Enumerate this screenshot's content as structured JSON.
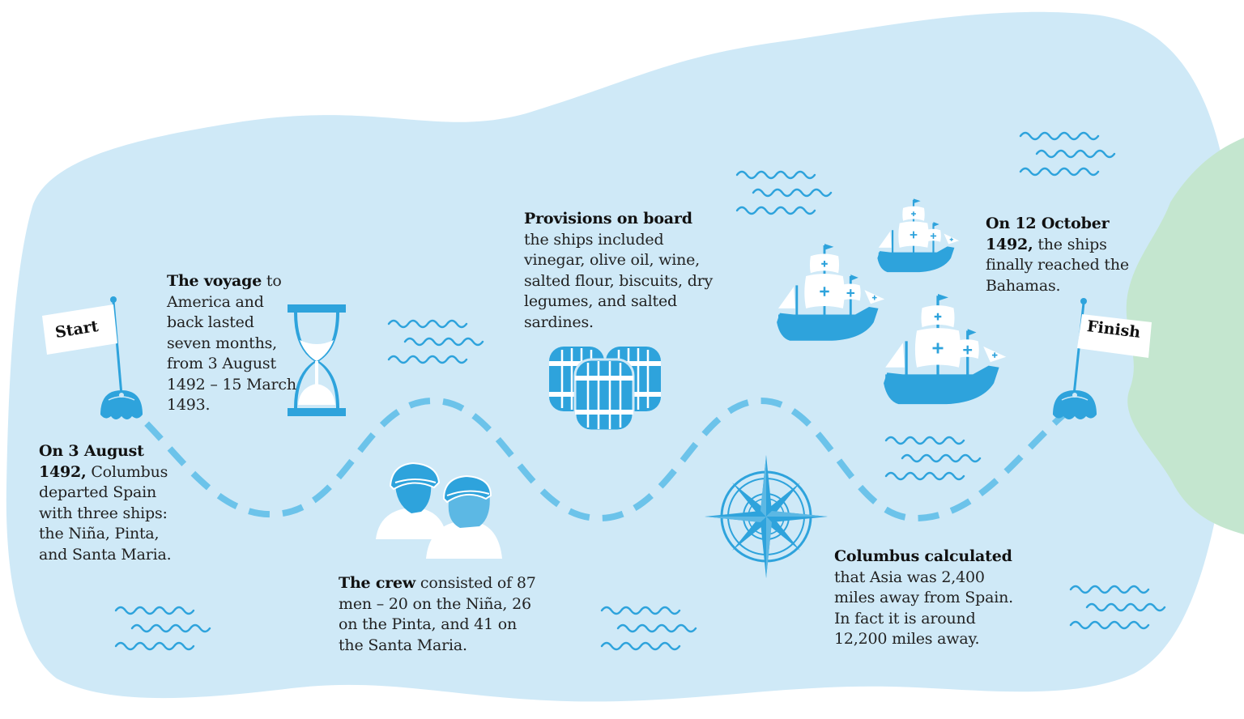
{
  "route": {
    "start_label": "Start",
    "finish_label": "Finish"
  },
  "facts": {
    "departure": {
      "bold": "On 3 August 1492,",
      "text": " Columbus departed Spain with three ships: the Niña, Pinta, and Santa Maria."
    },
    "voyage": {
      "bold": "The voyage",
      "text": " to America and back lasted seven months, from 3 August 1492 – 15 March 1493."
    },
    "crew": {
      "bold": "The crew",
      "text": " consisted of 87 men – 20 on the Niña, 26 on the Pinta, and 41 on the Santa Maria."
    },
    "provisions": {
      "bold": "Provisions on board",
      "text": " the ships included vinegar, olive oil, wine, salted flour, biscuits, dry legumes, and salted sardines."
    },
    "distance": {
      "bold": "Columbus calculated",
      "text": " that Asia was 2,400 miles away from Spain. In fact it is around 12,200 miles away."
    },
    "arrival": {
      "bold": "On 12 October 1492,",
      "text": " the ships finally reached the Bahamas."
    }
  },
  "icons": [
    "hourglass-icon",
    "barrels-icon",
    "sailors-icon",
    "compass-rose-icon",
    "ships-icon",
    "flag-icon",
    "wave-icon"
  ],
  "colors": {
    "sea": "#cfe9f7",
    "accent": "#2ea3dc",
    "path": "#6cc3ea",
    "land": "#c4e6cf"
  }
}
